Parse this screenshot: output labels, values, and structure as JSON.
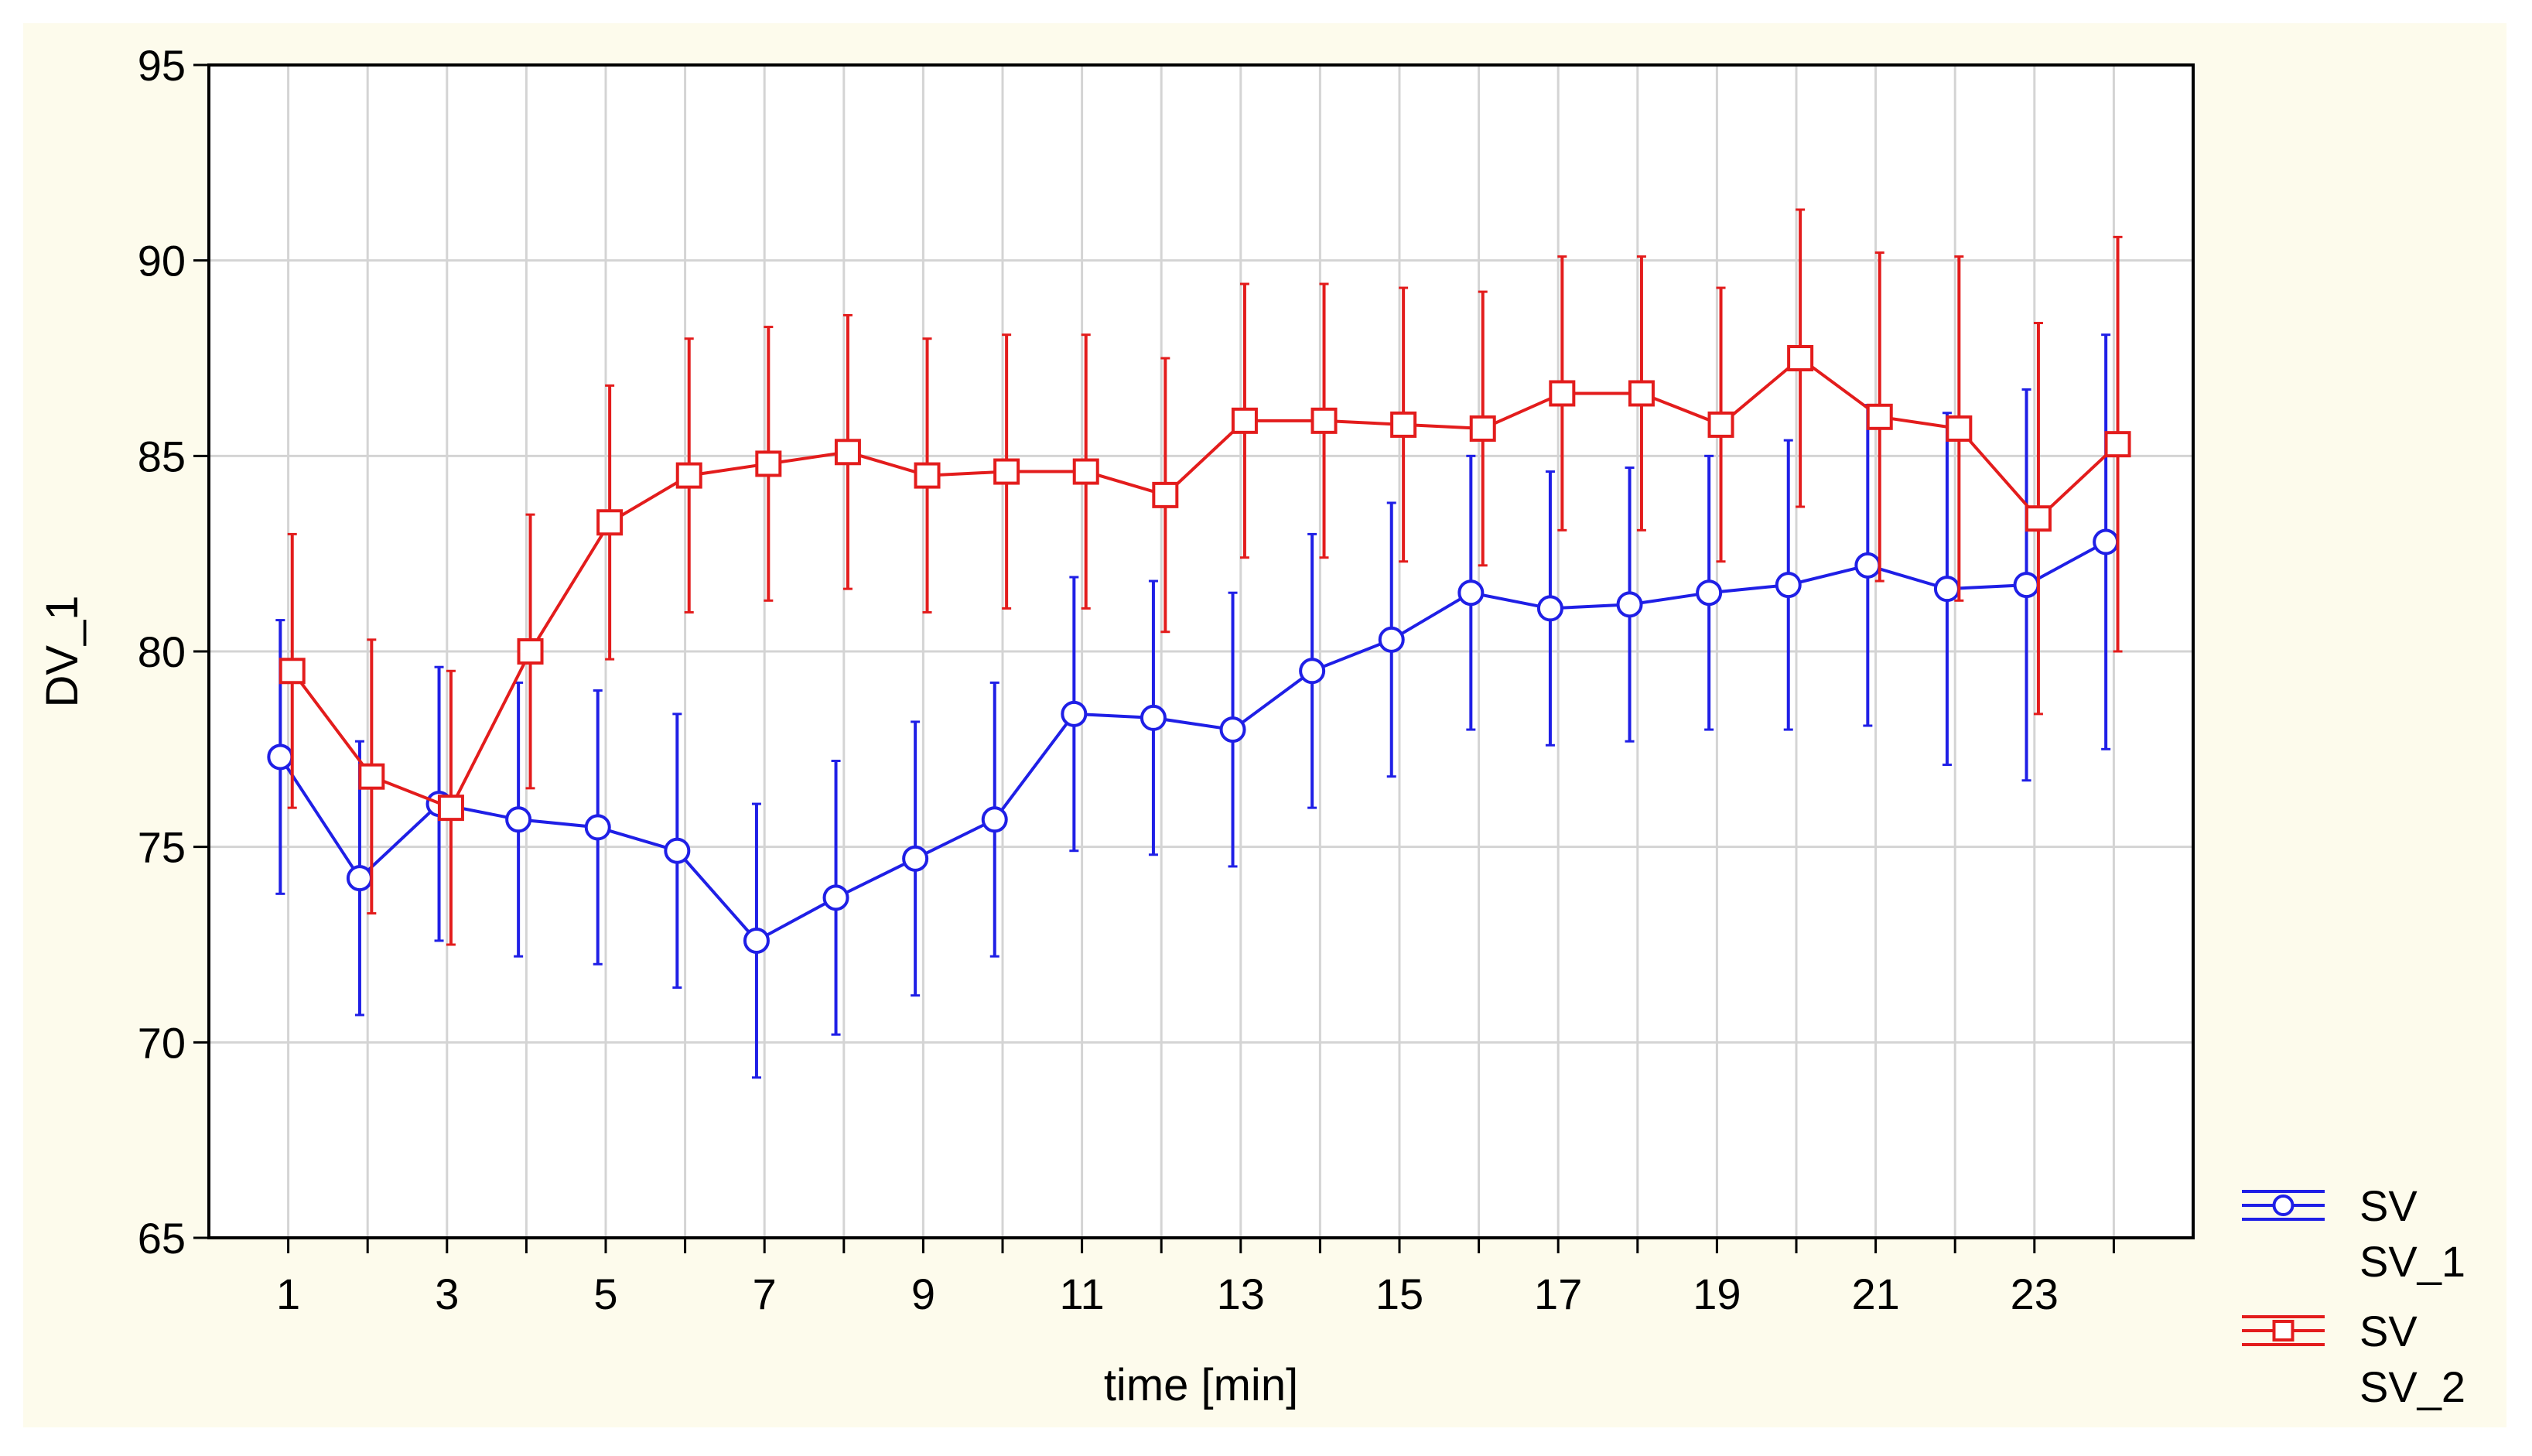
{
  "chart_data": {
    "type": "line",
    "title": "",
    "xlabel": "time [min]",
    "ylabel": "DV_1",
    "xlim": [
      0,
      25
    ],
    "ylim": [
      65,
      95
    ],
    "x_ticks": [
      1,
      3,
      5,
      7,
      9,
      11,
      13,
      15,
      17,
      19,
      21,
      23
    ],
    "y_ticks": [
      65,
      70,
      75,
      80,
      85,
      90,
      95
    ],
    "grid": true,
    "legend_position": "bottom-right",
    "x": [
      1,
      2,
      3,
      4,
      5,
      6,
      7,
      8,
      9,
      10,
      11,
      12,
      13,
      14,
      15,
      16,
      17,
      18,
      19,
      20,
      21,
      22,
      23,
      24
    ],
    "series": [
      {
        "legend_title": "SV",
        "name": "SV_1",
        "color": "#1f1fe6",
        "marker": "circle",
        "x_offset": -0.1,
        "values": [
          77.3,
          74.2,
          76.1,
          75.7,
          75.5,
          74.9,
          72.6,
          73.7,
          74.7,
          75.7,
          78.4,
          78.3,
          78.0,
          79.5,
          80.3,
          81.5,
          81.1,
          81.2,
          81.5,
          81.7,
          82.2,
          81.6,
          81.7,
          82.8
        ],
        "lower": [
          73.8,
          70.7,
          72.6,
          72.2,
          72.0,
          71.4,
          69.1,
          70.2,
          71.2,
          72.2,
          74.9,
          74.8,
          74.5,
          76.0,
          76.8,
          78.0,
          77.6,
          77.7,
          78.0,
          78.0,
          78.1,
          77.1,
          76.7,
          77.5
        ],
        "upper": [
          80.8,
          77.7,
          79.6,
          79.2,
          79.0,
          78.4,
          76.1,
          77.2,
          78.2,
          79.2,
          81.9,
          81.8,
          81.5,
          83.0,
          83.8,
          85.0,
          84.6,
          84.7,
          85.0,
          85.4,
          86.3,
          86.1,
          86.7,
          88.1
        ]
      },
      {
        "legend_title": "SV",
        "name": "SV_2",
        "color": "#e31c1c",
        "marker": "square",
        "x_offset": 0.05,
        "values": [
          79.5,
          76.8,
          76.0,
          80.0,
          83.3,
          84.5,
          84.8,
          85.1,
          84.5,
          84.6,
          84.6,
          84.0,
          85.9,
          85.9,
          85.8,
          85.7,
          86.6,
          86.6,
          85.8,
          87.5,
          86.0,
          85.7,
          83.4,
          85.3
        ],
        "lower": [
          76.0,
          73.3,
          72.5,
          76.5,
          79.8,
          81.0,
          81.3,
          81.6,
          81.0,
          81.1,
          81.1,
          80.5,
          82.4,
          82.4,
          82.3,
          82.2,
          83.1,
          83.1,
          82.3,
          83.7,
          81.8,
          81.3,
          78.4,
          80.0
        ],
        "upper": [
          83.0,
          80.3,
          79.5,
          83.5,
          86.8,
          88.0,
          88.3,
          88.6,
          88.0,
          88.1,
          88.1,
          87.5,
          89.4,
          89.4,
          89.3,
          89.2,
          90.1,
          90.1,
          89.3,
          91.3,
          90.2,
          90.1,
          88.4,
          90.6
        ]
      }
    ]
  }
}
